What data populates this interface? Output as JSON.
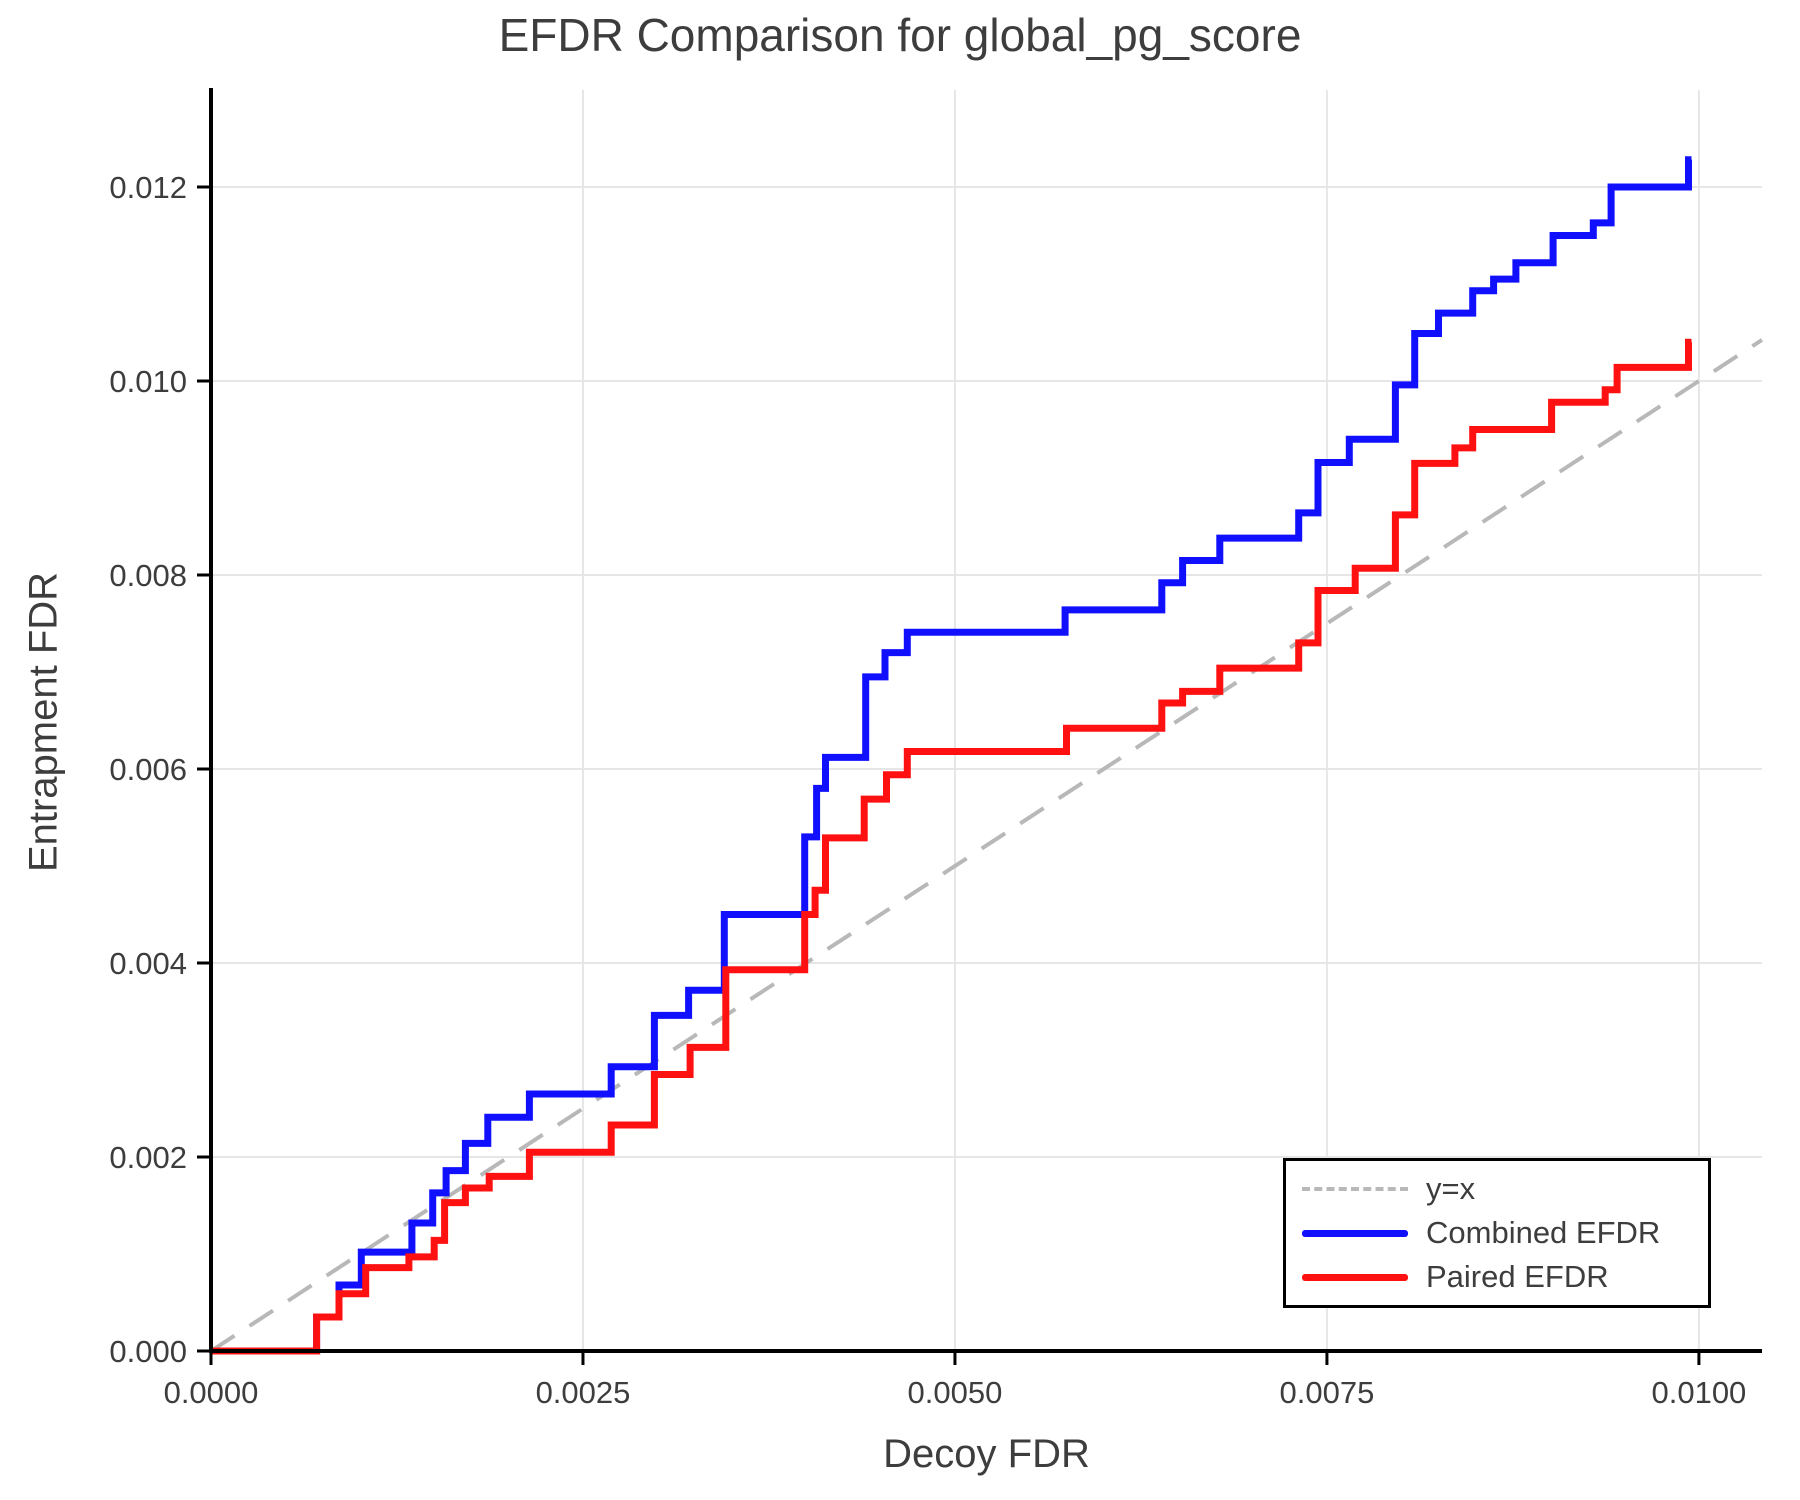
{
  "title": "EFDR Comparison for global_pg_score",
  "chart_data": {
    "type": "line",
    "subtype": "step-after",
    "title": "EFDR Comparison for global_pg_score",
    "xlabel": "Decoy FDR",
    "ylabel": "Entrapment FDR",
    "xlim": [
      0,
      0.010424
    ],
    "ylim": [
      0,
      0.013
    ],
    "grid": true,
    "x_ticks": [
      0.0,
      0.0025,
      0.005,
      0.0075,
      0.01
    ],
    "x_tick_labels": [
      "0.0000",
      "0.0025",
      "0.0050",
      "0.0075",
      "0.0100"
    ],
    "y_ticks": [
      0.0,
      0.002,
      0.004,
      0.006,
      0.008,
      0.01,
      0.012
    ],
    "y_tick_labels": [
      "0.000",
      "0.002",
      "0.004",
      "0.006",
      "0.008",
      "0.010",
      "0.012"
    ],
    "identity_line": {
      "label": "y=x",
      "color": "#b8b8b8",
      "style": "dashed",
      "x0": 0,
      "y0": 0,
      "x1": 0.010424,
      "y1": 0.010424
    },
    "legend": {
      "position": "lower right",
      "entries": [
        {
          "label": "y=x",
          "color": "#b8b8b8",
          "style": "dashed"
        },
        {
          "label": "Combined EFDR",
          "color": "#1010ff",
          "style": "solid"
        },
        {
          "label": "Paired EFDR",
          "color": "#ff1111",
          "style": "solid"
        }
      ]
    },
    "series": [
      {
        "name": "Combined EFDR",
        "color": "#1010ff",
        "start": [
          0,
          0
        ],
        "end_x": 0.00995,
        "points": [
          [
            0.00071,
            0.00035
          ],
          [
            0.00086,
            0.00068
          ],
          [
            0.00101,
            0.00102
          ],
          [
            0.00135,
            0.00132
          ],
          [
            0.00149,
            0.00163
          ],
          [
            0.00158,
            0.00186
          ],
          [
            0.00171,
            0.00214
          ],
          [
            0.00186,
            0.00241
          ],
          [
            0.00214,
            0.00265
          ],
          [
            0.00269,
            0.00293
          ],
          [
            0.00298,
            0.00346
          ],
          [
            0.00321,
            0.00372
          ],
          [
            0.00345,
            0.0045
          ],
          [
            0.00399,
            0.0053
          ],
          [
            0.00407,
            0.0058
          ],
          [
            0.00413,
            0.00612
          ],
          [
            0.0044,
            0.00695
          ],
          [
            0.00453,
            0.0072
          ],
          [
            0.00468,
            0.00741
          ],
          [
            0.00574,
            0.00764
          ],
          [
            0.00639,
            0.00792
          ],
          [
            0.00653,
            0.00815
          ],
          [
            0.00678,
            0.00838
          ],
          [
            0.00731,
            0.00864
          ],
          [
            0.00744,
            0.00916
          ],
          [
            0.00765,
            0.0094
          ],
          [
            0.00796,
            0.00996
          ],
          [
            0.00809,
            0.01049
          ],
          [
            0.00825,
            0.0107
          ],
          [
            0.00848,
            0.01093
          ],
          [
            0.00862,
            0.01105
          ],
          [
            0.00877,
            0.01122
          ],
          [
            0.00902,
            0.0115
          ],
          [
            0.00929,
            0.01163
          ],
          [
            0.00941,
            0.012
          ],
          [
            0.00993,
            0.01228
          ]
        ]
      },
      {
        "name": "Paired EFDR",
        "color": "#ff1111",
        "start": [
          0,
          0
        ],
        "end_x": 0.00995,
        "points": [
          [
            0.00071,
            0.00035
          ],
          [
            0.00086,
            0.00059
          ],
          [
            0.00104,
            0.00086
          ],
          [
            0.00133,
            0.00097
          ],
          [
            0.0015,
            0.00114
          ],
          [
            0.00157,
            0.00153
          ],
          [
            0.00171,
            0.00168
          ],
          [
            0.00187,
            0.0018
          ],
          [
            0.00214,
            0.00205
          ],
          [
            0.00269,
            0.00233
          ],
          [
            0.00298,
            0.00285
          ],
          [
            0.00322,
            0.00313
          ],
          [
            0.00346,
            0.00393
          ],
          [
            0.00399,
            0.0045
          ],
          [
            0.00406,
            0.00475
          ],
          [
            0.00413,
            0.00529
          ],
          [
            0.00439,
            0.00569
          ],
          [
            0.00454,
            0.00594
          ],
          [
            0.00468,
            0.00618
          ],
          [
            0.00575,
            0.00642
          ],
          [
            0.00639,
            0.00668
          ],
          [
            0.00653,
            0.0068
          ],
          [
            0.00678,
            0.00704
          ],
          [
            0.00731,
            0.0073
          ],
          [
            0.00744,
            0.00784
          ],
          [
            0.00769,
            0.00807
          ],
          [
            0.00796,
            0.00862
          ],
          [
            0.00809,
            0.00915
          ],
          [
            0.00836,
            0.00931
          ],
          [
            0.00848,
            0.0095
          ],
          [
            0.00901,
            0.00978
          ],
          [
            0.00937,
            0.00991
          ],
          [
            0.00945,
            0.01014
          ],
          [
            0.00993,
            0.0104
          ]
        ]
      }
    ],
    "style": {
      "grid_color": "#e6e6e6",
      "spine_color": "#000000",
      "text_color": "#3d3d3d",
      "background": "#ffffff"
    }
  }
}
